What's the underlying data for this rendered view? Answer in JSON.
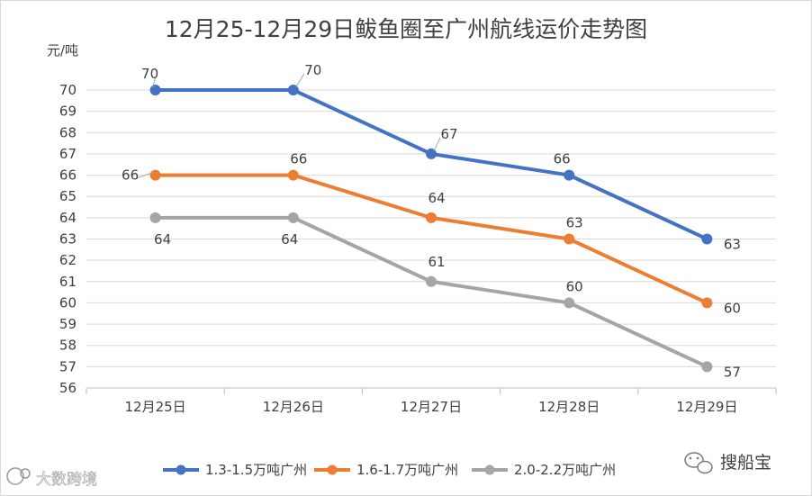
{
  "chart_data": {
    "type": "line",
    "title": "12月25-12月29日鲅鱼圈至广州航线运价走势图",
    "ylabel": "元/吨",
    "categories": [
      "12月25日",
      "12月26日",
      "12月27日",
      "12月28日",
      "12月29日"
    ],
    "ylim": [
      56,
      70
    ],
    "yticks": [
      56,
      57,
      58,
      59,
      60,
      61,
      62,
      63,
      64,
      65,
      66,
      67,
      68,
      69,
      70
    ],
    "grid": true,
    "legend_position": "bottom",
    "series": [
      {
        "name": "1.3-1.5万吨广州",
        "color": "#4472C4",
        "values": [
          70,
          70,
          67,
          66,
          63
        ]
      },
      {
        "name": "1.6-1.7万吨广州",
        "color": "#ED7D31",
        "values": [
          66,
          66,
          64,
          63,
          60
        ]
      },
      {
        "name": "2.0-2.2万吨广州",
        "color": "#A5A5A5",
        "values": [
          64,
          64,
          61,
          60,
          57
        ]
      }
    ]
  },
  "watermark": {
    "text": "大数跨境"
  },
  "brand": {
    "text": "搜船宝",
    "icon": "wechat-icon"
  }
}
